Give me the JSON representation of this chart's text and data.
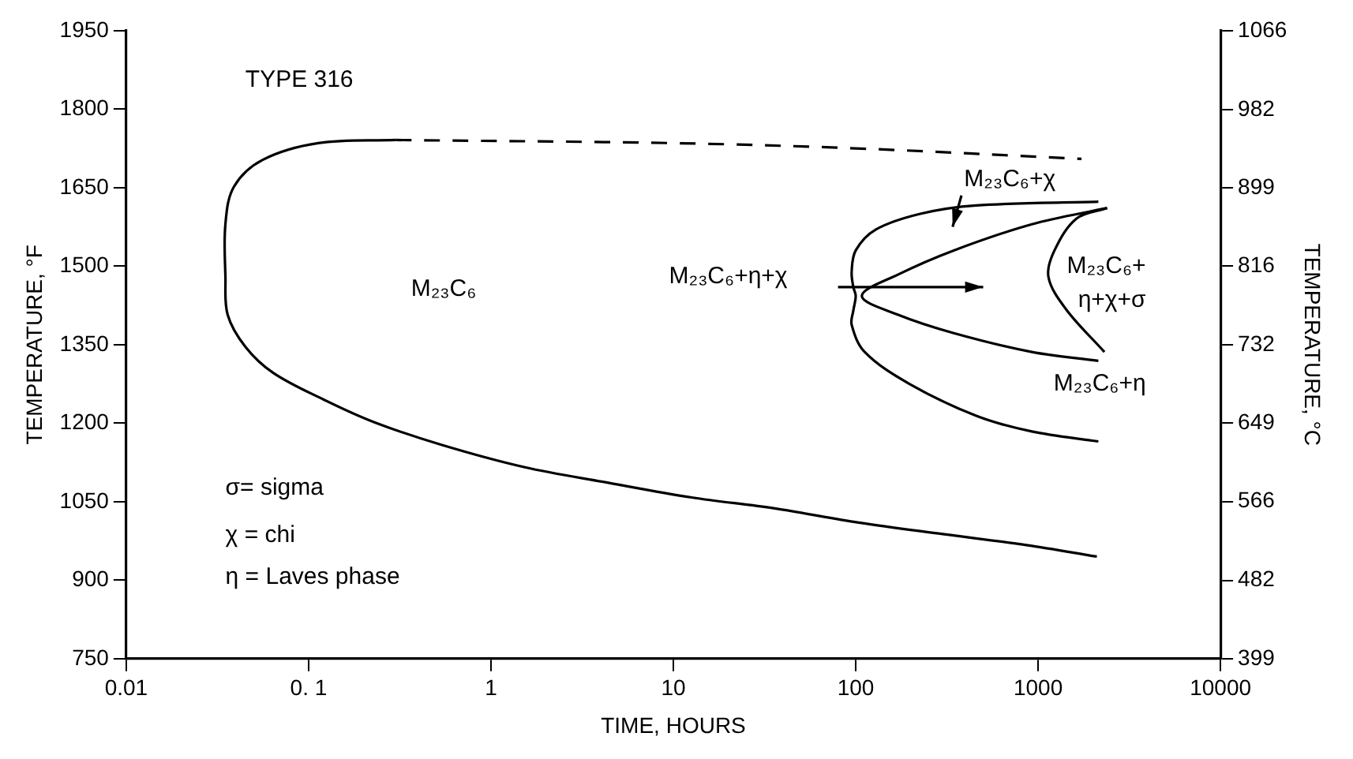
{
  "chart_data": {
    "type": "line",
    "xlabel": "TIME, HOURS",
    "ylabel": "TEMPERATURE, °F",
    "y2label": "TEMPERATURE, °C",
    "log": "x",
    "xlim": [
      0.01,
      10000
    ],
    "xticks": [
      0.01,
      {
        "value": 0.1,
        "label": "0. 1"
      },
      1,
      10,
      100,
      1000,
      10000
    ],
    "ylim": [
      750,
      1950
    ],
    "yticks": [
      750,
      900,
      1050,
      1200,
      1350,
      1500,
      1650,
      1800,
      1950
    ],
    "y2lim": [
      399,
      1066
    ],
    "y2ticks": [
      399,
      482,
      566,
      649,
      732,
      816,
      899,
      982,
      1066
    ],
    "series": [
      {
        "color": "#000000",
        "x": [
          0.3,
          0.113,
          0.056,
          0.039,
          0.035,
          0.035,
          0.036,
          0.045,
          0.064,
          0.121,
          0.228,
          0.53,
          1.52,
          4.4,
          12.6,
          36,
          104,
          300,
          863,
          2100
        ],
        "values": [
          1741,
          1735,
          1703,
          1652,
          1581,
          1479,
          1407,
          1346,
          1296,
          1245,
          1202,
          1159,
          1116,
          1086,
          1058,
          1037,
          1010,
          988,
          967,
          945
        ]
      },
      {
        "color": "#000000",
        "line_style": "dashed",
        "x": [
          0.3,
          10,
          100,
          1730
        ],
        "values": [
          1741,
          1735,
          1725,
          1705
        ]
      },
      {
        "color": "#000000",
        "x": [
          2140,
          458,
          226,
          129,
          100,
          95,
          97,
          100,
          97,
          95,
          112,
          197,
          458,
          925,
          2140
        ],
        "values": [
          1623,
          1616,
          1600,
          1570,
          1530,
          1489,
          1460,
          1443,
          1415,
          1388,
          1336,
          1275,
          1214,
          1184,
          1165
        ]
      },
      {
        "color": "#000000",
        "x": [
          2390,
          925,
          345,
          171,
          108,
          171,
          345,
          925,
          2140
        ],
        "values": [
          1611,
          1580,
          1530,
          1484,
          1443,
          1407,
          1372,
          1336,
          1319
        ]
      },
      {
        "color": "#000000",
        "x": [
          2390,
          1625,
          1230,
          1140,
          1420,
          2310
        ],
        "values": [
          1611,
          1591,
          1530,
          1479,
          1418,
          1336
        ]
      }
    ],
    "annotations": [
      "TYPE 316",
      "M₂₃C₆",
      "M₂₃C₆+η+χ",
      "M₂₃C₆+χ",
      "M₂₃C₆+",
      "η+χ+σ",
      "M₂₃C₆+η",
      "σ= sigma",
      "χ = chi",
      "η = Laves phase"
    ]
  }
}
